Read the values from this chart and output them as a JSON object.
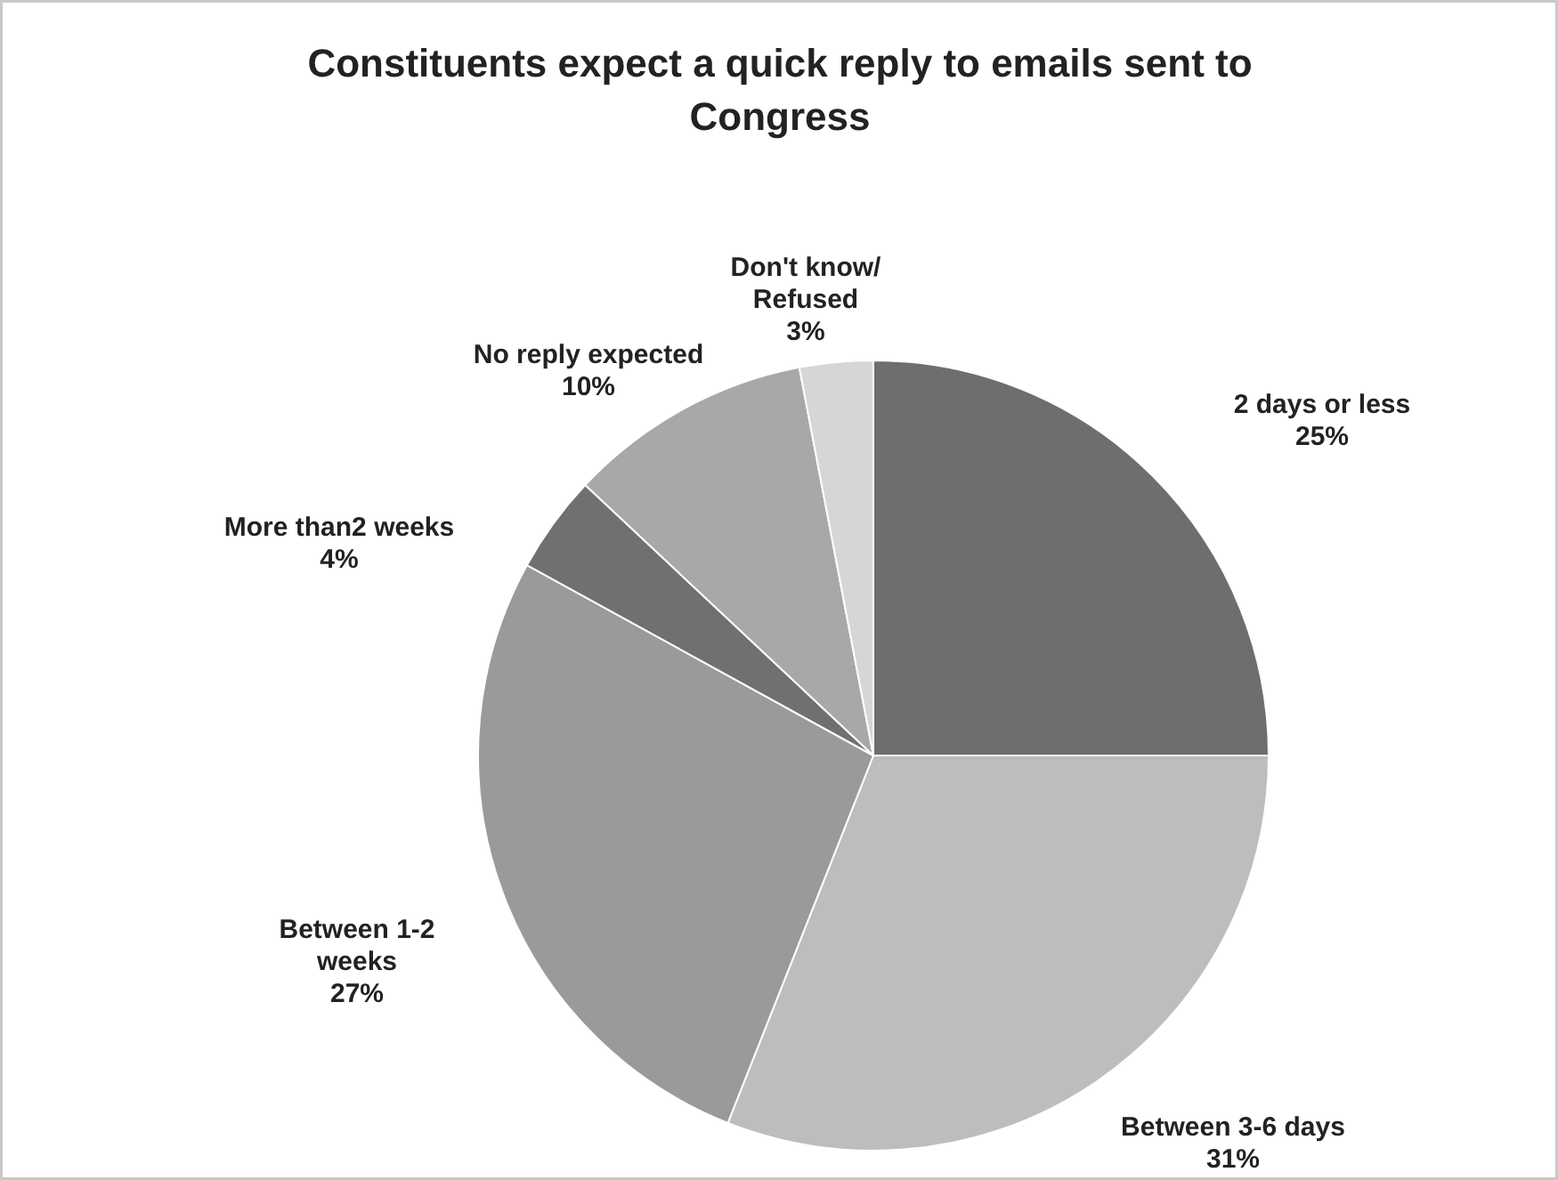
{
  "chart_data": {
    "type": "pie",
    "title": "Constituents expect a quick reply to emails sent to Congress",
    "categories": [
      "2 days or less",
      "Between 3-6 days",
      "Between 1-2 weeks",
      "More than2 weeks",
      "No reply expected",
      "Don't know/ Refused"
    ],
    "values": [
      25,
      31,
      27,
      4,
      10,
      3
    ],
    "value_labels": [
      "25%",
      "31%",
      "27%",
      "4%",
      "10%",
      "3%"
    ],
    "colors": [
      "#6e6e6e",
      "#bdbdbd",
      "#9a9a9a",
      "#707070",
      "#a8a8a8",
      "#d6d6d6"
    ],
    "legend": false
  }
}
